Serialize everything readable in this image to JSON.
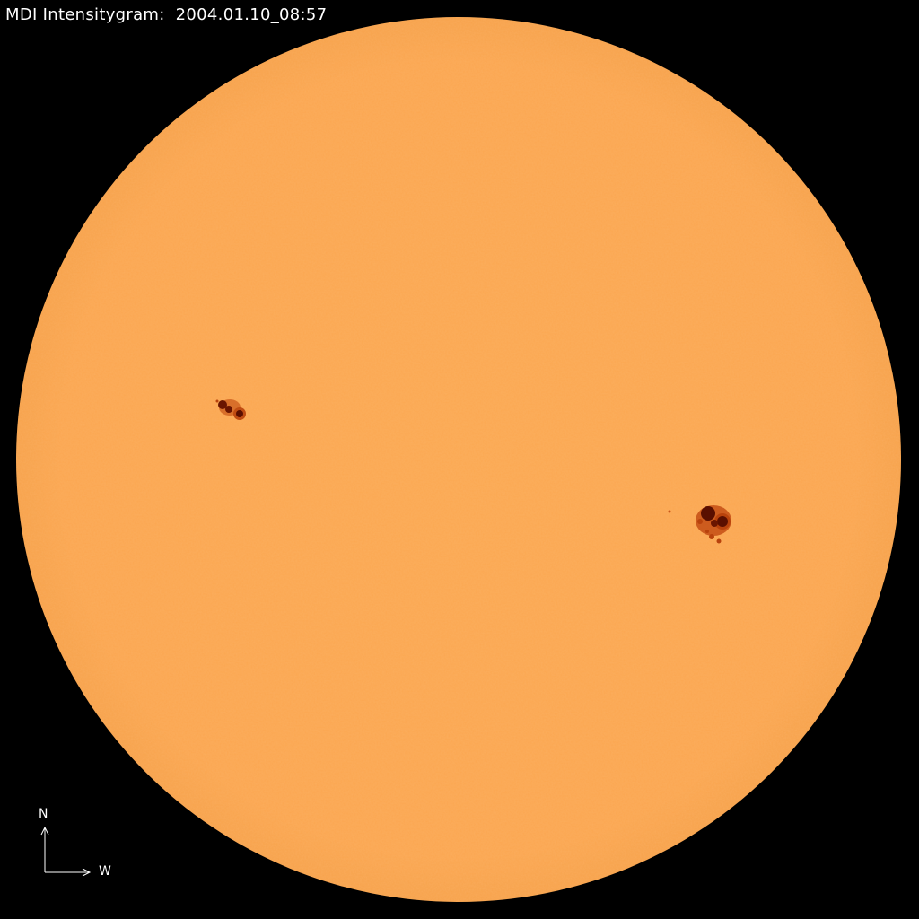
{
  "title": "MDI Intensitygram:  2004.01.10_08:57",
  "compass": {
    "north_label": "N",
    "west_label": "W"
  },
  "colors": {
    "background": "#000000",
    "disk": "#fba851",
    "umbra": "#5a0f00",
    "penumbra": "#b8420c",
    "text": "#ffffff"
  }
}
